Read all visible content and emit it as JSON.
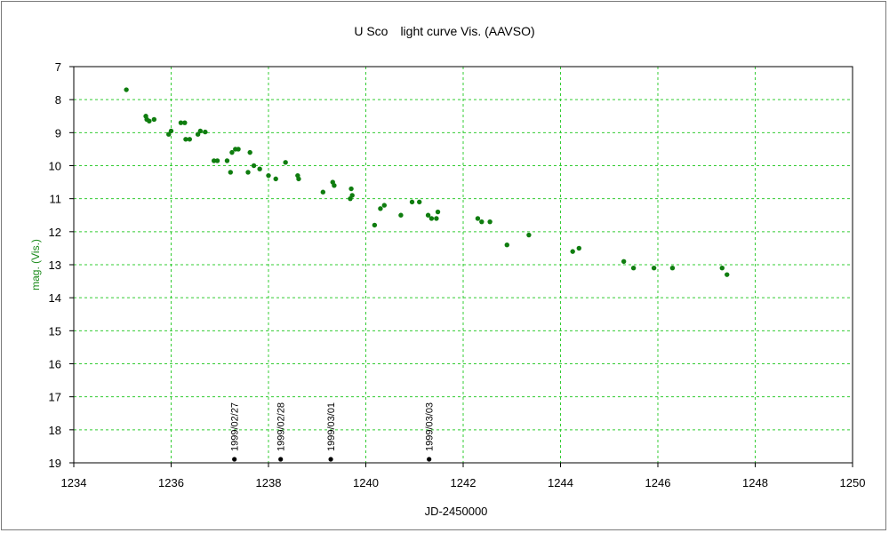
{
  "chart_data": {
    "type": "scatter",
    "title": "U Sco　light curve  Vis. (AAVSO)",
    "xlabel": "JD-2450000",
    "ylabel": "mag. (Vis.)",
    "xlim": [
      1234,
      1250
    ],
    "ylim": [
      7,
      19
    ],
    "y_inverted": false,
    "x_ticks": [
      1234,
      1236,
      1238,
      1240,
      1242,
      1244,
      1246,
      1248,
      1250
    ],
    "y_ticks": [
      7,
      8,
      9,
      10,
      11,
      12,
      13,
      14,
      15,
      16,
      17,
      18,
      19
    ],
    "grid": true,
    "colors": {
      "points": "#0f7d0f",
      "grid": "#33cc33",
      "markers": "#000000"
    },
    "series": [
      {
        "points": [
          [
            1235.08,
            7.7
          ],
          [
            1235.48,
            8.5
          ],
          [
            1235.5,
            8.6
          ],
          [
            1235.55,
            8.65
          ],
          [
            1235.65,
            8.6
          ],
          [
            1235.95,
            9.05
          ],
          [
            1236.0,
            8.95
          ],
          [
            1236.2,
            8.7
          ],
          [
            1236.28,
            8.7
          ],
          [
            1236.3,
            9.2
          ],
          [
            1236.38,
            9.2
          ],
          [
            1236.55,
            9.05
          ],
          [
            1236.6,
            8.95
          ],
          [
            1236.7,
            8.98
          ],
          [
            1236.88,
            9.85
          ],
          [
            1236.95,
            9.85
          ],
          [
            1237.15,
            9.85
          ],
          [
            1237.22,
            10.2
          ],
          [
            1237.25,
            9.6
          ],
          [
            1237.32,
            9.5
          ],
          [
            1237.38,
            9.5
          ],
          [
            1237.58,
            10.2
          ],
          [
            1237.62,
            9.6
          ],
          [
            1237.7,
            10.0
          ],
          [
            1237.82,
            10.1
          ],
          [
            1238.0,
            10.3
          ],
          [
            1238.15,
            10.4
          ],
          [
            1238.35,
            9.9
          ],
          [
            1238.6,
            10.3
          ],
          [
            1238.62,
            10.4
          ],
          [
            1239.12,
            10.8
          ],
          [
            1239.32,
            10.5
          ],
          [
            1239.35,
            10.6
          ],
          [
            1239.68,
            11.0
          ],
          [
            1239.7,
            10.7
          ],
          [
            1239.72,
            10.9
          ],
          [
            1240.18,
            11.8
          ],
          [
            1240.3,
            11.3
          ],
          [
            1240.38,
            11.2
          ],
          [
            1240.72,
            11.5
          ],
          [
            1240.95,
            11.1
          ],
          [
            1241.1,
            11.1
          ],
          [
            1241.28,
            11.5
          ],
          [
            1241.35,
            11.6
          ],
          [
            1241.45,
            11.6
          ],
          [
            1241.48,
            11.4
          ],
          [
            1242.3,
            11.6
          ],
          [
            1242.38,
            11.7
          ],
          [
            1242.55,
            11.7
          ],
          [
            1242.9,
            12.4
          ],
          [
            1243.35,
            12.1
          ],
          [
            1244.25,
            12.6
          ],
          [
            1244.38,
            12.5
          ],
          [
            1245.3,
            12.9
          ],
          [
            1245.5,
            13.1
          ],
          [
            1245.92,
            13.1
          ],
          [
            1246.3,
            13.1
          ],
          [
            1247.32,
            13.1
          ],
          [
            1247.42,
            13.3
          ]
        ]
      }
    ],
    "date_markers": [
      {
        "x": 1237.3,
        "y": 19,
        "label": "1999/02/27"
      },
      {
        "x": 1238.25,
        "y": 19,
        "label": "1999/02/28"
      },
      {
        "x": 1239.28,
        "y": 19,
        "label": "1999/03/01"
      },
      {
        "x": 1241.3,
        "y": 19,
        "label": "1999/03/03"
      }
    ]
  }
}
